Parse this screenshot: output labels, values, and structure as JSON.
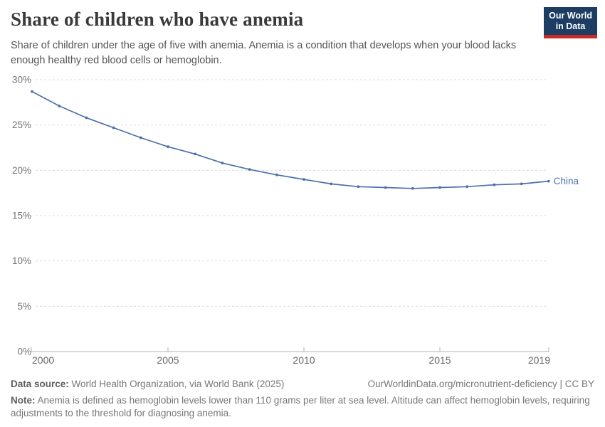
{
  "header": {
    "title": "Share of children who have anemia",
    "subtitle": "Share of children under the age of five with anemia. Anemia is a condition that develops when your blood lacks enough healthy red blood cells or hemoglobin.",
    "logo": {
      "line1": "Our World",
      "line2": "in Data"
    }
  },
  "chart_data": {
    "type": "line",
    "title": "Share of children who have anemia",
    "xlabel": "",
    "ylabel": "",
    "x": [
      2000,
      2001,
      2002,
      2003,
      2004,
      2005,
      2006,
      2007,
      2008,
      2009,
      2010,
      2011,
      2012,
      2013,
      2014,
      2015,
      2016,
      2017,
      2018,
      2019
    ],
    "series": [
      {
        "name": "China",
        "color": "#4c70ab",
        "values": [
          28.7,
          27.1,
          25.8,
          24.7,
          23.6,
          22.6,
          21.8,
          20.8,
          20.1,
          19.5,
          19.0,
          18.5,
          18.2,
          18.1,
          18.0,
          18.1,
          18.2,
          18.4,
          18.5,
          18.8
        ]
      }
    ],
    "xlim": [
      2000,
      2019
    ],
    "ylim": [
      0,
      30
    ],
    "x_ticks": [
      2000,
      2005,
      2010,
      2015,
      2019
    ],
    "x_tick_labels": [
      "2000",
      "2005",
      "2010",
      "2015",
      "2019"
    ],
    "y_ticks": [
      0,
      5,
      10,
      15,
      20,
      25,
      30
    ],
    "y_tick_labels": [
      "0%",
      "5%",
      "10%",
      "15%",
      "20%",
      "25%",
      "30%"
    ],
    "grid": "horizontal-dashed",
    "legend_position": "end-of-line-label"
  },
  "footer": {
    "source_label": "Data source:",
    "source_text": " World Health Organization, via World Bank (2025)",
    "link_text": "OurWorldinData.org/micronutrient-deficiency",
    "separator": " | ",
    "license_text": "CC BY",
    "note_label": "Note:",
    "note_text": " Anemia is defined as hemoglobin levels lower than 110 grams per liter at sea level. Altitude can affect hemoglobin levels, requiring adjustments to the threshold for diagnosing anemia."
  },
  "colors": {
    "line": "#4c70ab",
    "logo_bg": "#1d3d63",
    "logo_accent": "#cc2a25",
    "grid": "#dcdcdc",
    "axis": "#b0b0b0",
    "tick_label": "#737373",
    "title_text": "#3a3a3a",
    "subtitle_text": "#555555",
    "footer_text": "#777777"
  }
}
